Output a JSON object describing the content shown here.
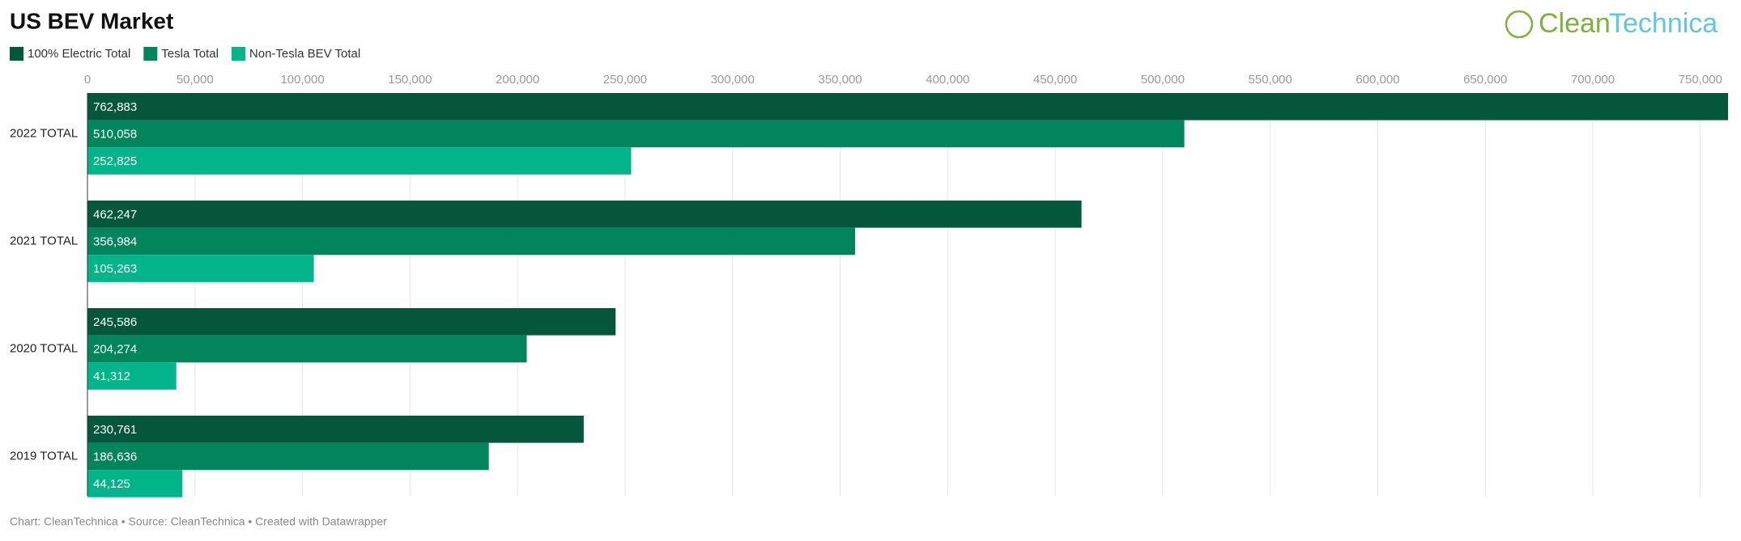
{
  "chart_data": {
    "type": "hbar",
    "title": "US BEV Market",
    "logo": [
      "Clean",
      "Technica"
    ],
    "source": "Chart: CleanTechnica • Source: CleanTechnica • Created with Datawrapper",
    "categories": [
      "2022 TOTAL",
      "2021 TOTAL",
      "2020 TOTAL",
      "2019 TOTAL"
    ],
    "series": [
      {
        "name": "100% Electric Total",
        "color": "#04573a",
        "values": [
          762883,
          462247,
          245586,
          230761
        ],
        "value_labels": [
          "762,883",
          "462,247",
          "245,586",
          "230,761"
        ]
      },
      {
        "name": "Tesla Total",
        "color": "#03855c",
        "values": [
          510058,
          356984,
          204274,
          186636
        ],
        "value_labels": [
          "510,058",
          "356,984",
          "204,274",
          "186,636"
        ]
      },
      {
        "name": "Non-Tesla BEV Total",
        "color": "#02b48a",
        "values": [
          252825,
          105263,
          41312,
          44125
        ],
        "value_labels": [
          "252,825",
          "105,263",
          "41,312",
          "44,125"
        ]
      }
    ],
    "xlim": [
      0,
      762883
    ],
    "xticks": [
      0,
      {
        "value": 50000,
        "label": "50,000"
      },
      {
        "value": 100000,
        "label": "100,000"
      },
      {
        "value": 150000,
        "label": "150,000"
      },
      {
        "value": 200000,
        "label": "200,000"
      },
      {
        "value": 250000,
        "label": "250,000"
      },
      {
        "value": 300000,
        "label": "300,000"
      },
      {
        "value": 350000,
        "label": "350,000"
      },
      {
        "value": 400000,
        "label": "400,000"
      },
      {
        "value": 450000,
        "label": "450,000"
      },
      {
        "value": 500000,
        "label": "500,000"
      },
      {
        "value": 550000,
        "label": "550,000"
      },
      {
        "value": 600000,
        "label": "600,000"
      },
      {
        "value": 650000,
        "label": "650,000"
      },
      {
        "value": 700000,
        "label": "700,000"
      },
      {
        "value": 750000,
        "label": "750,000"
      }
    ],
    "grid": true
  }
}
